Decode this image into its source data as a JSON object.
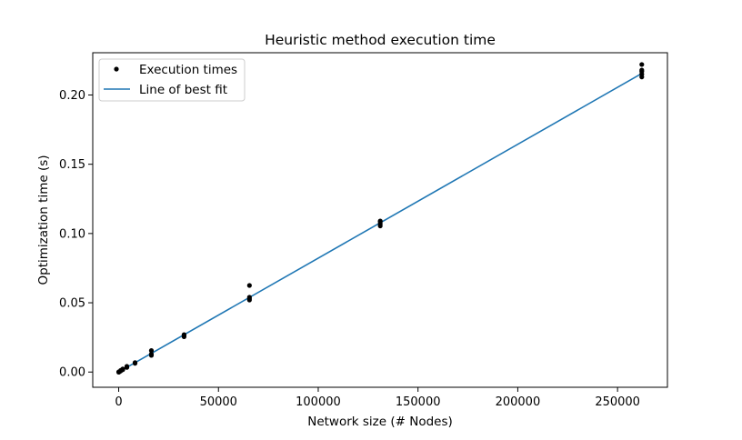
{
  "chart_data": {
    "type": "scatter",
    "title": "Heuristic method execution time",
    "xlabel": "Network size (# Nodes)",
    "ylabel": "Optimization time (s)",
    "xlim": [
      -13000,
      275000
    ],
    "ylim": [
      -0.011,
      0.2305
    ],
    "xticks": [
      0,
      50000,
      100000,
      150000,
      200000,
      250000
    ],
    "xtick_labels": [
      "0",
      "50000",
      "100000",
      "150000",
      "200000",
      "250000"
    ],
    "yticks": [
      0.0,
      0.05,
      0.1,
      0.15,
      0.2
    ],
    "ytick_labels": [
      "0.00",
      "0.05",
      "0.10",
      "0.15",
      "0.20"
    ],
    "grid": false,
    "legend_position": "top-left",
    "series": [
      {
        "name": "Execution times",
        "kind": "scatter",
        "color": "#000000",
        "points": [
          [
            16,
            0.0
          ],
          [
            32,
            0.0
          ],
          [
            64,
            0.0
          ],
          [
            128,
            0.0001
          ],
          [
            256,
            0.0002
          ],
          [
            512,
            0.0004
          ],
          [
            1024,
            0.0008
          ],
          [
            1024,
            0.0012
          ],
          [
            2048,
            0.0017
          ],
          [
            2048,
            0.0022
          ],
          [
            4096,
            0.0033
          ],
          [
            4096,
            0.0041
          ],
          [
            8192,
            0.0063
          ],
          [
            8192,
            0.0068
          ],
          [
            16384,
            0.012
          ],
          [
            16384,
            0.013
          ],
          [
            16384,
            0.0155
          ],
          [
            32768,
            0.0255
          ],
          [
            32768,
            0.0265
          ],
          [
            32768,
            0.027
          ],
          [
            65536,
            0.052
          ],
          [
            65536,
            0.053
          ],
          [
            65536,
            0.054
          ],
          [
            65536,
            0.0625
          ],
          [
            131072,
            0.1055
          ],
          [
            131072,
            0.107
          ],
          [
            131072,
            0.1085
          ],
          [
            131072,
            0.109
          ],
          [
            262144,
            0.213
          ],
          [
            262144,
            0.215
          ],
          [
            262144,
            0.217
          ],
          [
            262144,
            0.218
          ],
          [
            262144,
            0.222
          ]
        ]
      },
      {
        "name": "Line of best fit",
        "kind": "line",
        "color": "#1f77b4",
        "points": [
          [
            0,
            0.0
          ],
          [
            262144,
            0.2155
          ]
        ]
      }
    ]
  }
}
